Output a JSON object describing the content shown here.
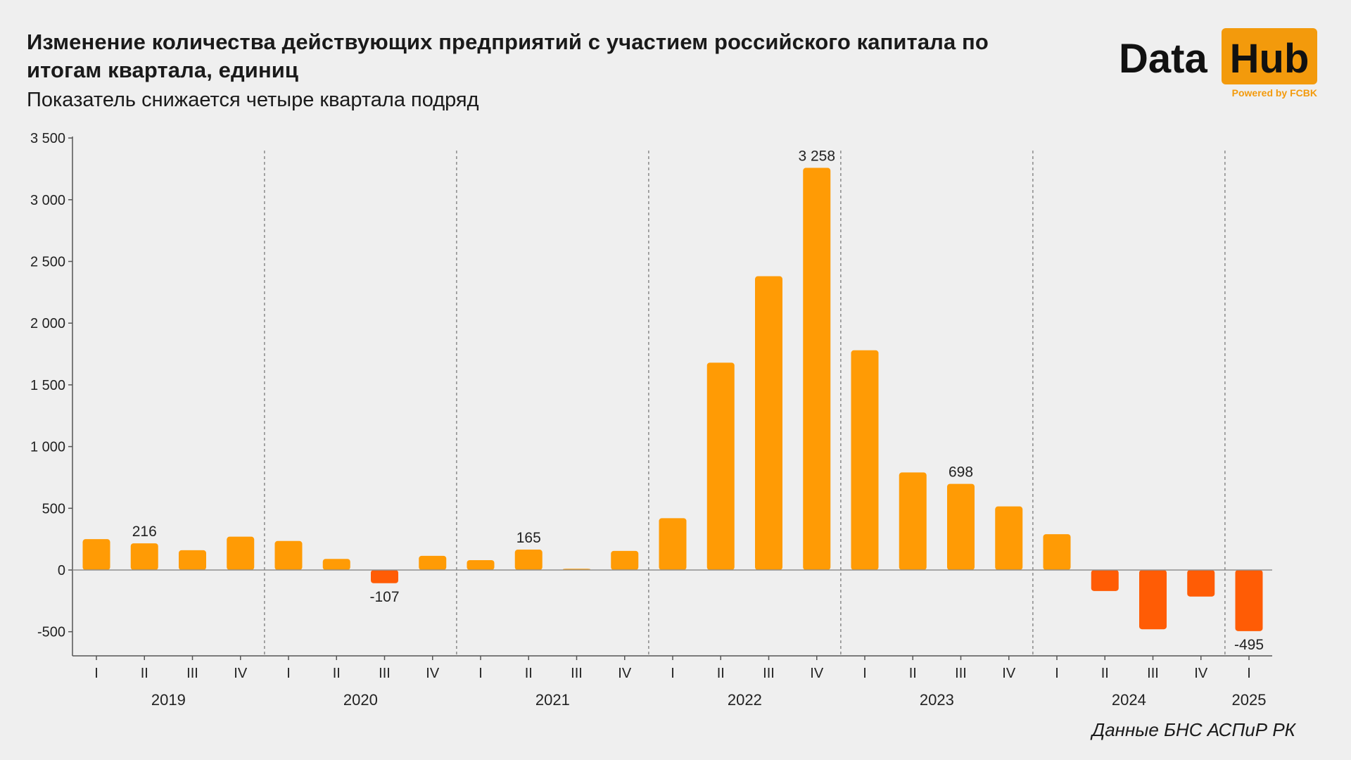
{
  "title": "Изменение количества действующих предприятий с участием российского капитала по итогам квартала, единиц",
  "subtitle": "Показатель снижается четыре квартала подряд",
  "logo": {
    "word1": "Data",
    "word2": "Hub",
    "tagline": "Powered by FCBK"
  },
  "source": "Данные БНС АСПиР РК",
  "colors": {
    "positive": "#ff9b05",
    "negative": "#ff5c05",
    "axis": "#555555",
    "separator": "#8a8a8a",
    "background": "#efefef"
  },
  "chart_data": {
    "type": "bar",
    "title": "Изменение количества действующих предприятий с участием российского капитала по итогам квартала, единиц",
    "xlabel": "",
    "ylabel": "",
    "ylim": [
      -700,
      3500
    ],
    "yticks": [
      3500,
      3000,
      2500,
      2000,
      1500,
      1000,
      500,
      0,
      -500
    ],
    "ytick_labels": [
      "3 500",
      "3 000",
      "2 500",
      "2 000",
      "1 500",
      "1 000",
      "500",
      "0",
      "-500"
    ],
    "grid": false,
    "legend": "none",
    "years": [
      {
        "label": "2019",
        "count": 4
      },
      {
        "label": "2020",
        "count": 4
      },
      {
        "label": "2021",
        "count": 4
      },
      {
        "label": "2022",
        "count": 4
      },
      {
        "label": "2023",
        "count": 4
      },
      {
        "label": "2024",
        "count": 4
      },
      {
        "label": "2025",
        "count": 1
      }
    ],
    "categories": [
      "I",
      "II",
      "III",
      "IV",
      "I",
      "II",
      "III",
      "IV",
      "I",
      "II",
      "III",
      "IV",
      "I",
      "II",
      "III",
      "IV",
      "I",
      "II",
      "III",
      "IV",
      "I",
      "II",
      "III",
      "IV",
      "I"
    ],
    "values": [
      250,
      216,
      160,
      270,
      235,
      90,
      -107,
      115,
      80,
      165,
      10,
      155,
      420,
      1680,
      2380,
      3258,
      1780,
      790,
      698,
      515,
      290,
      -170,
      -480,
      -215,
      -495
    ],
    "data_labels": [
      {
        "index": 1,
        "text": "216"
      },
      {
        "index": 6,
        "text": "-107"
      },
      {
        "index": 9,
        "text": "165"
      },
      {
        "index": 15,
        "text": "3 258"
      },
      {
        "index": 18,
        "text": "698"
      },
      {
        "index": 24,
        "text": "-495"
      }
    ]
  }
}
